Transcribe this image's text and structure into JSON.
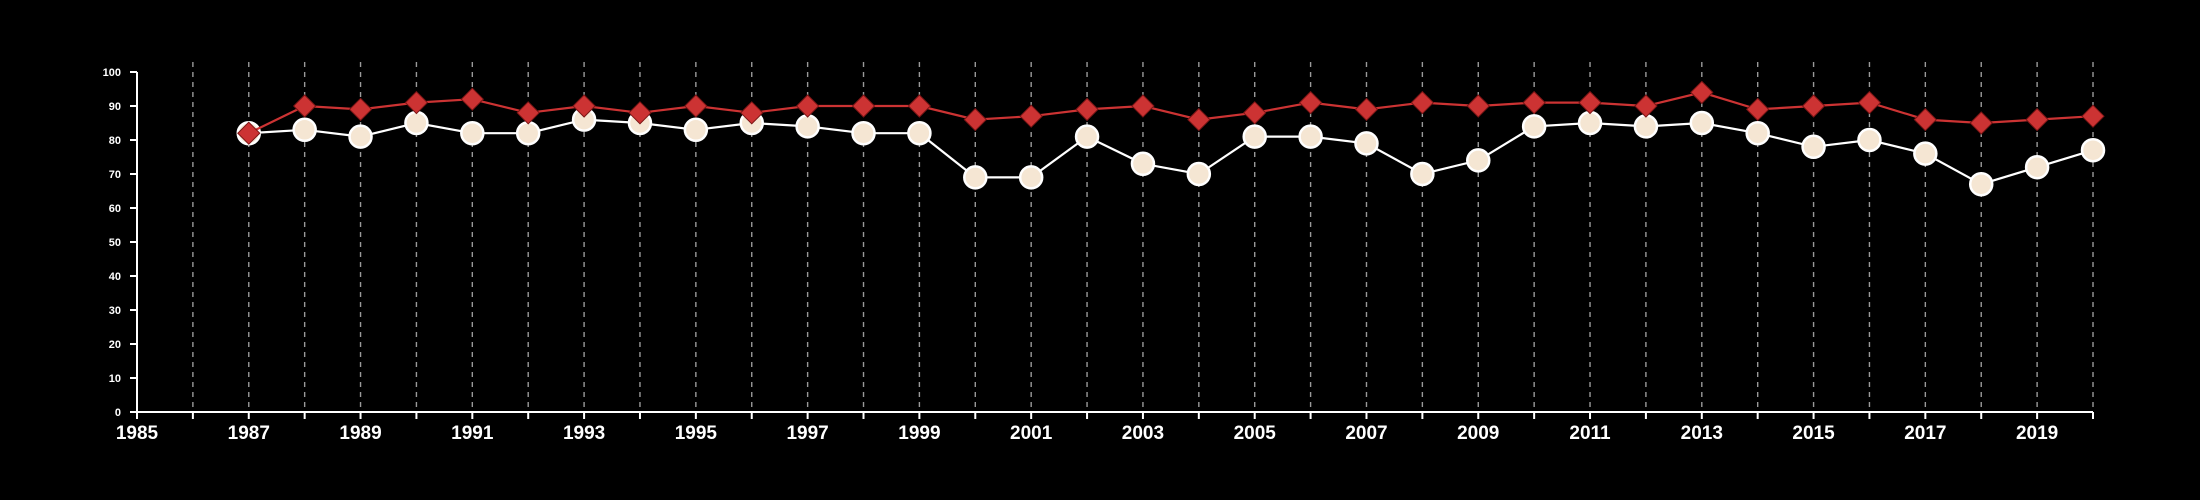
{
  "chart_data": {
    "type": "line",
    "title": "",
    "xlabel": "",
    "ylabel": "",
    "xlim": [
      1985,
      2020
    ],
    "ylim": [
      0,
      100
    ],
    "x_ticks": [
      1985,
      1987,
      1989,
      1991,
      1993,
      1995,
      1997,
      1999,
      2001,
      2003,
      2005,
      2007,
      2009,
      2011,
      2013,
      2015,
      2017,
      2019
    ],
    "x_tick_labels": [
      "1985",
      "1987",
      "1989",
      "1991",
      "1993",
      "1995",
      "1997",
      "1999",
      "2001",
      "2003",
      "2005",
      "2007",
      "2009",
      "2011",
      "2013",
      "2015",
      "2017",
      "2019"
    ],
    "y_ticks": [
      0,
      10,
      20,
      30,
      40,
      50,
      60,
      70,
      80,
      90,
      100
    ],
    "y_tick_labels": [
      "0",
      "10",
      "20",
      "30",
      "40",
      "50",
      "60",
      "70",
      "80",
      "90",
      "100"
    ],
    "grid": "vertical dashed at every year",
    "x": [
      1987,
      1988,
      1989,
      1990,
      1991,
      1992,
      1993,
      1994,
      1995,
      1996,
      1997,
      1998,
      1999,
      2000,
      2001,
      2002,
      2003,
      2004,
      2005,
      2006,
      2007,
      2008,
      2009,
      2010,
      2011,
      2012,
      2013,
      2014,
      2015,
      2016,
      2017,
      2018,
      2019,
      2020
    ],
    "series": [
      {
        "marker": "diamond",
        "color": "#cc3333",
        "values": [
          82,
          90,
          89,
          91,
          92,
          88,
          90,
          88,
          90,
          88,
          90,
          90,
          90,
          86,
          87,
          89,
          90,
          86,
          88,
          91,
          89,
          91,
          90,
          91,
          91,
          90,
          94,
          89,
          90,
          91,
          86,
          85,
          86,
          87
        ]
      },
      {
        "marker": "circle",
        "color": "#f5e6d3",
        "values": [
          82,
          83,
          81,
          85,
          82,
          82,
          86,
          85,
          83,
          85,
          84,
          82,
          82,
          69,
          69,
          81,
          73,
          70,
          81,
          81,
          79,
          70,
          74,
          84,
          85,
          84,
          85,
          82,
          78,
          80,
          76,
          67,
          72,
          77
        ]
      }
    ]
  }
}
